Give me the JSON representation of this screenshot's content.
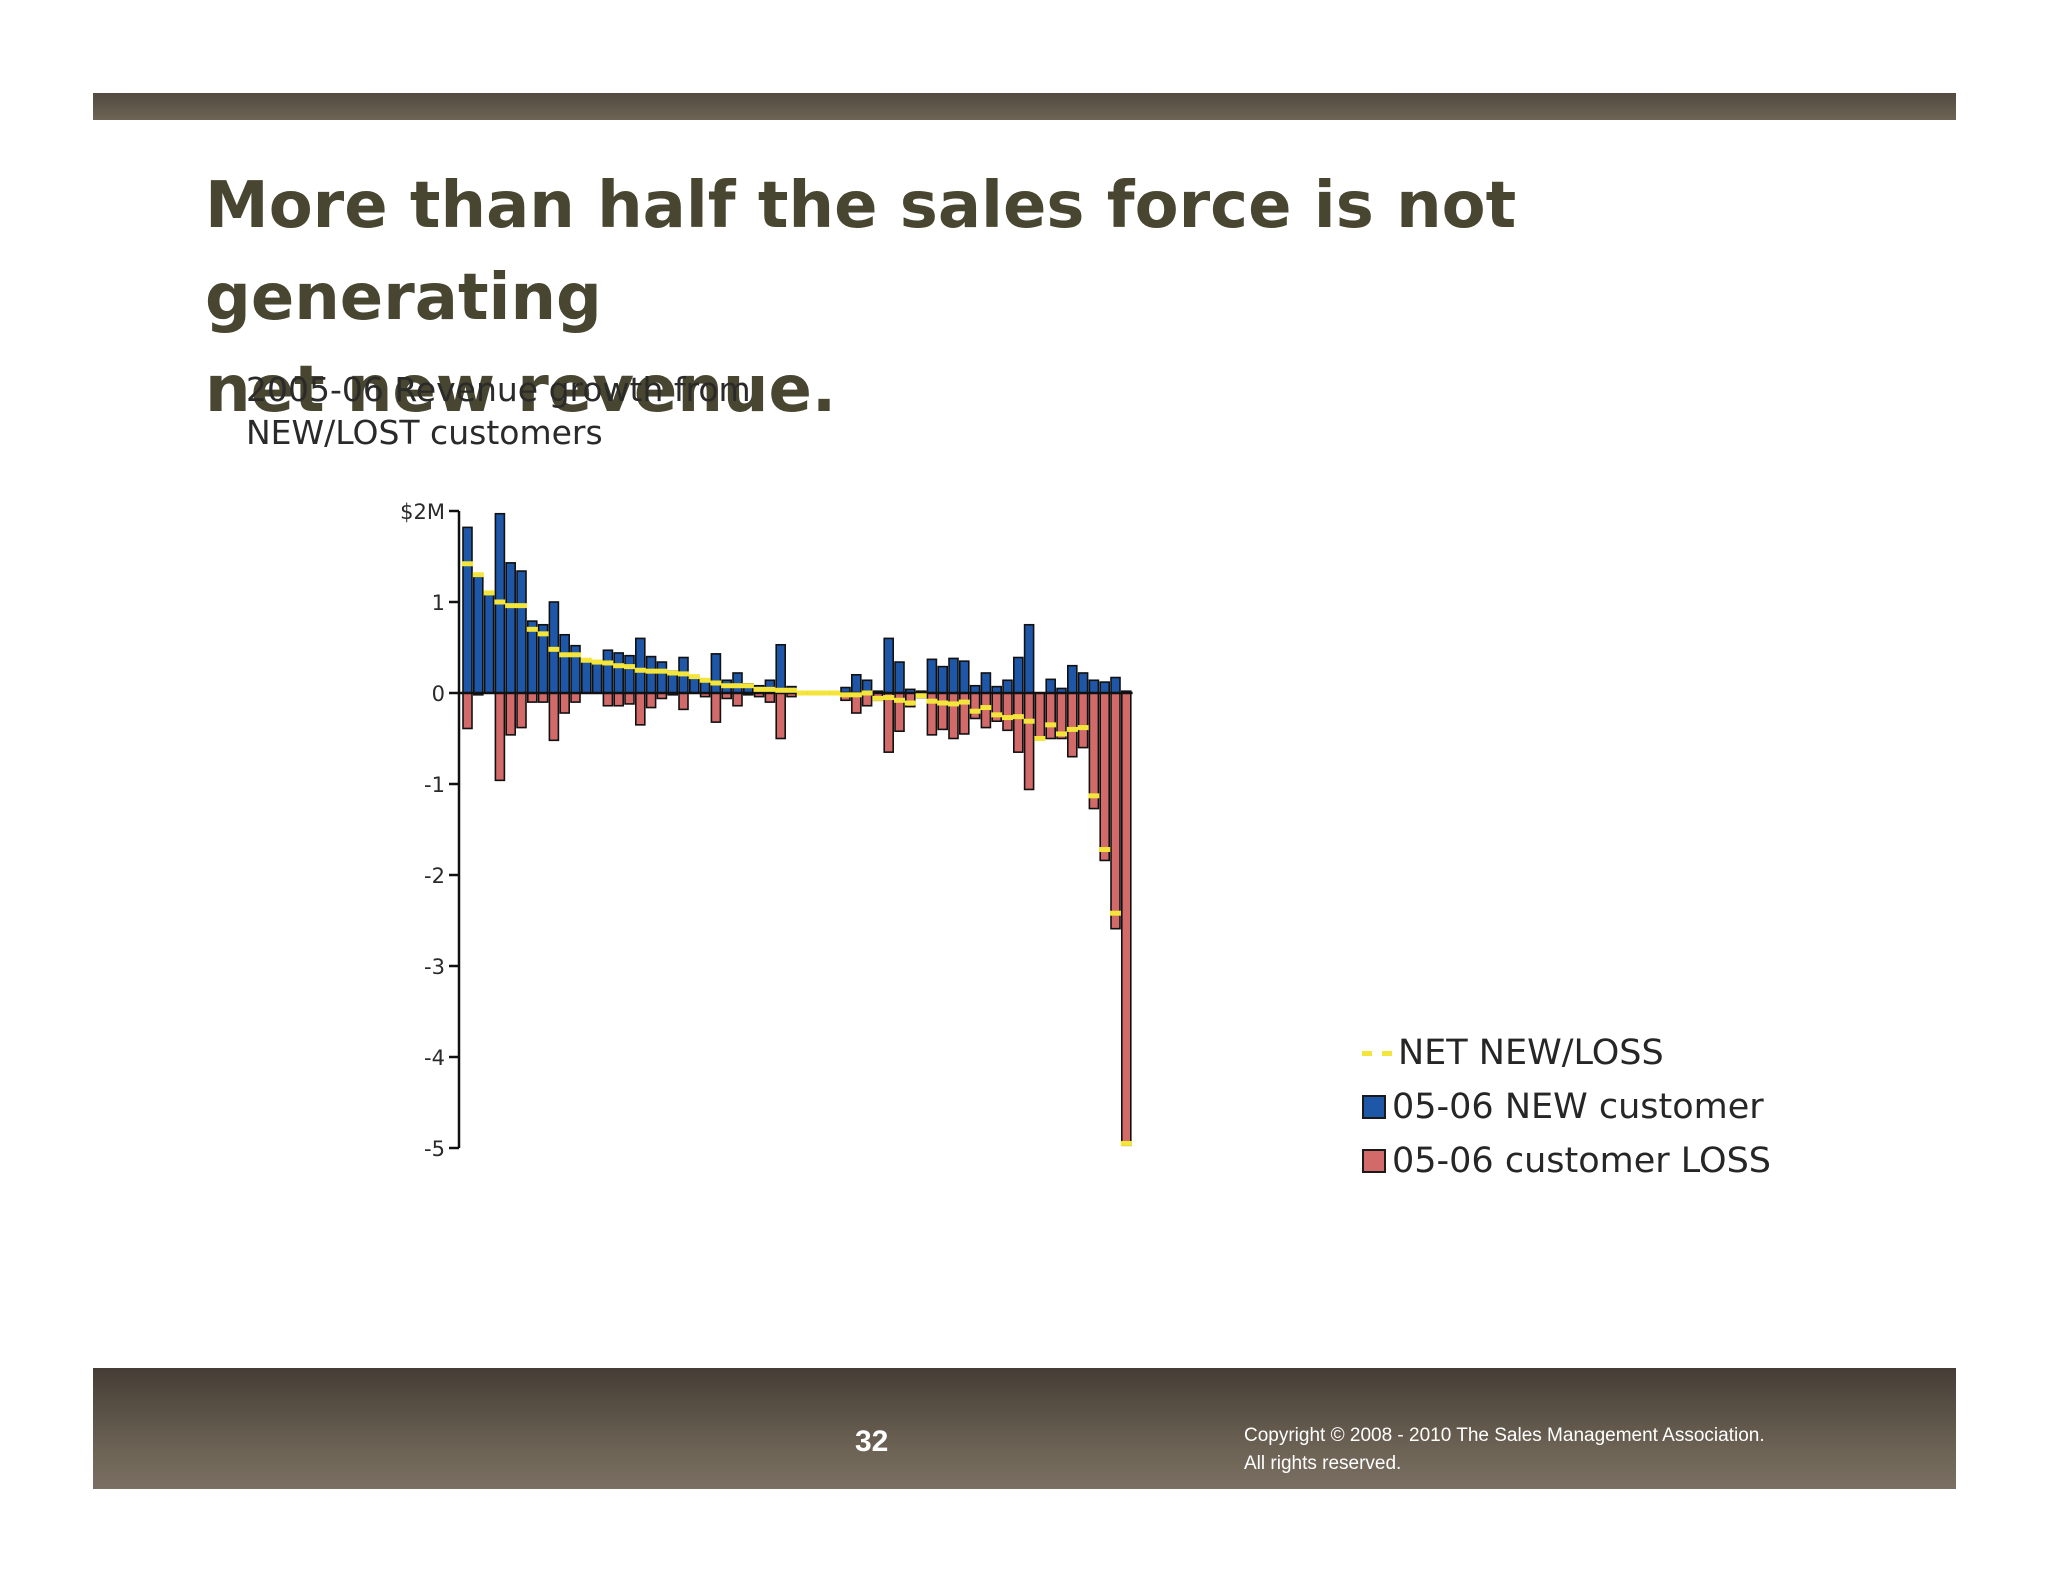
{
  "slide": {
    "title_line1": "More than half the sales force is not generating",
    "title_line2": "net new revenue.",
    "page_number": "32",
    "copyright_line1": "Copyright © 2008 - 2010 The Sales Management Association.",
    "copyright_line2": "All rights reserved."
  },
  "colors": {
    "new": "#1e56a8",
    "loss": "#d26a6a",
    "net": "#f4e53a",
    "title": "#484530"
  },
  "chart_data": {
    "type": "bar",
    "title_line1": "2005-06 Revenue growth from",
    "title_line2": "NEW/LOST customers",
    "ylim": [
      -5,
      2
    ],
    "yticks": [
      {
        "value": 2,
        "label": "$2M"
      },
      {
        "value": 1,
        "label": "1"
      },
      {
        "value": 0,
        "label": "0"
      },
      {
        "value": -1,
        "label": "-1"
      },
      {
        "value": -2,
        "label": "-2"
      },
      {
        "value": -3,
        "label": "-3"
      },
      {
        "value": -4,
        "label": "-4"
      },
      {
        "value": -5,
        "label": "-5"
      }
    ],
    "legend": [
      "NET NEW/LOSS",
      "05-06 NEW customer",
      "05-06 customer LOSS"
    ],
    "series": [
      {
        "name": "05-06 NEW customer",
        "values": [
          1.82,
          1.28,
          1.1,
          1.97,
          1.43,
          1.34,
          0.79,
          0.75,
          1.0,
          0.64,
          0.52,
          0.36,
          0.34,
          0.47,
          0.44,
          0.41,
          0.6,
          0.4,
          0.34,
          0.24,
          0.39,
          0.18,
          0.15,
          0.43,
          0.14,
          0.22,
          0.1,
          0.08,
          0.14,
          0.53,
          0.07,
          0.0,
          0.0,
          0.0,
          0.0,
          0.06,
          0.2,
          0.14,
          0.02,
          0.6,
          0.34,
          0.04,
          0.02,
          0.37,
          0.29,
          0.38,
          0.35,
          0.08,
          0.22,
          0.07,
          0.14,
          0.39,
          0.75,
          0.0,
          0.15,
          0.05,
          0.3,
          0.22,
          0.14,
          0.12,
          0.17,
          0.02
        ]
      },
      {
        "name": "05-06 customer LOSS",
        "values": [
          -0.39,
          -0.02,
          0.0,
          -0.96,
          -0.46,
          -0.38,
          -0.1,
          -0.1,
          -0.52,
          -0.22,
          -0.1,
          0.0,
          0.0,
          -0.14,
          -0.14,
          -0.12,
          -0.35,
          -0.16,
          -0.06,
          -0.02,
          -0.18,
          0.0,
          -0.04,
          -0.32,
          -0.06,
          -0.14,
          -0.02,
          -0.04,
          -0.1,
          -0.5,
          -0.04,
          0.0,
          0.0,
          0.0,
          0.0,
          -0.08,
          -0.22,
          -0.14,
          -0.08,
          -0.65,
          -0.42,
          -0.15,
          -0.05,
          -0.46,
          -0.4,
          -0.5,
          -0.45,
          -0.28,
          -0.38,
          -0.31,
          -0.41,
          -0.65,
          -1.06,
          -0.5,
          -0.5,
          -0.5,
          -0.7,
          -0.6,
          -1.27,
          -1.84,
          -2.59,
          -4.97
        ]
      },
      {
        "name": "NET NEW/LOSS",
        "values": [
          1.42,
          1.3,
          1.1,
          1.0,
          0.96,
          0.96,
          0.7,
          0.65,
          0.48,
          0.42,
          0.42,
          0.36,
          0.34,
          0.33,
          0.3,
          0.29,
          0.25,
          0.24,
          0.24,
          0.22,
          0.21,
          0.18,
          0.14,
          0.11,
          0.08,
          0.08,
          0.08,
          0.04,
          0.04,
          0.03,
          0.03,
          0.0,
          0.0,
          0.0,
          0.0,
          -0.02,
          -0.02,
          0.0,
          -0.06,
          -0.05,
          -0.08,
          -0.11,
          -0.03,
          -0.09,
          -0.11,
          -0.12,
          -0.1,
          -0.2,
          -0.16,
          -0.24,
          -0.27,
          -0.26,
          -0.31,
          -0.5,
          -0.35,
          -0.45,
          -0.4,
          -0.38,
          -1.13,
          -1.72,
          -2.42,
          -4.95
        ]
      }
    ]
  }
}
